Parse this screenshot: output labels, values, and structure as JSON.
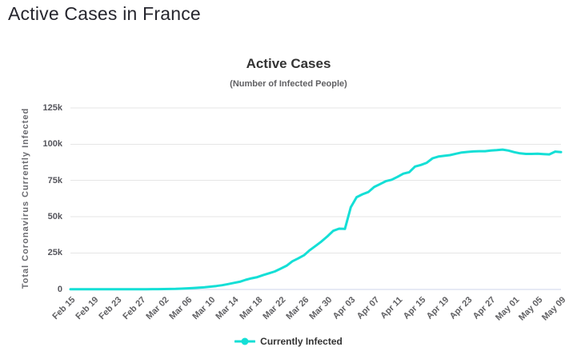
{
  "page": {
    "title": "Active Cases in France"
  },
  "chart": {
    "title": "Active Cases",
    "subtitle": "(Number of Infected People)",
    "y_axis_title": "Total Coronavirus Currently Infected",
    "legend_label": "Currently Infected",
    "line_color": "#14dfd6",
    "grid_color": "#e6e6e6",
    "axis_line_color": "#ccd6eb",
    "tick_text_color": "#606063"
  },
  "chart_data": {
    "type": "line",
    "title": "Active Cases",
    "subtitle": "(Number of Infected People)",
    "xlabel": "",
    "ylabel": "Total Coronavirus Currently Infected",
    "ylim": [
      0,
      125000
    ],
    "ytick_values": [
      0,
      25000,
      50000,
      75000,
      100000,
      125000
    ],
    "ytick_labels": [
      "0",
      "25k",
      "50k",
      "75k",
      "100k",
      "125k"
    ],
    "xtick_labels": [
      "Feb 15",
      "Feb 19",
      "Feb 23",
      "Feb 27",
      "Mar 02",
      "Mar 06",
      "Mar 10",
      "Mar 14",
      "Mar 18",
      "Mar 22",
      "Mar 26",
      "Mar 30",
      "Apr 03",
      "Apr 07",
      "Apr 11",
      "Apr 15",
      "Apr 19",
      "Apr 23",
      "Apr 27",
      "May 01",
      "May 05",
      "May 09"
    ],
    "xtick_every_n_points": 4,
    "grid": "horizontal",
    "legend_position": "bottom",
    "series": [
      {
        "name": "Currently Infected",
        "color": "#14dfd6",
        "values": [
          10,
          10,
          10,
          10,
          10,
          10,
          10,
          10,
          10,
          10,
          15,
          20,
          30,
          60,
          100,
          130,
          190,
          230,
          290,
          420,
          650,
          900,
          1100,
          1400,
          1800,
          2250,
          2800,
          3600,
          4400,
          5200,
          6500,
          7550,
          8350,
          9750,
          11000,
          12300,
          14200,
          16200,
          19300,
          21300,
          23500,
          27000,
          30000,
          33000,
          36500,
          40300,
          41800,
          41600,
          56500,
          63500,
          65500,
          67000,
          70500,
          72500,
          74500,
          75500,
          77500,
          79700,
          80700,
          84600,
          85700,
          87200,
          90300,
          91500,
          92000,
          92500,
          93400,
          94300,
          94700,
          95000,
          95200,
          95200,
          95600,
          95900,
          96300,
          95600,
          94500,
          93700,
          93300,
          93300,
          93500,
          93200,
          93000,
          94900,
          94600
        ]
      }
    ]
  }
}
